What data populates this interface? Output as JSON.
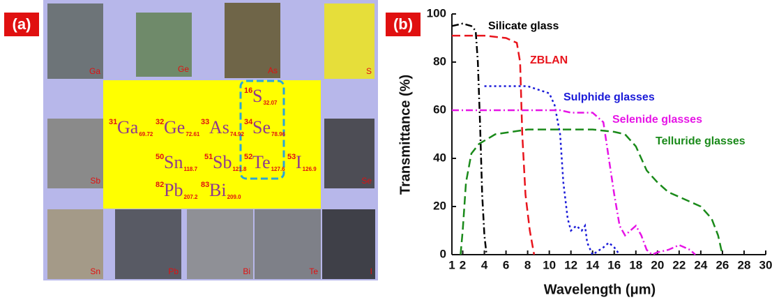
{
  "panel_a": {
    "label": "(a)",
    "elements": [
      {
        "number": "31",
        "symbol": "Ga",
        "mass": "69.72"
      },
      {
        "number": "32",
        "symbol": "Ge",
        "mass": "72.61"
      },
      {
        "number": "33",
        "symbol": "As",
        "mass": "74.92"
      },
      {
        "number": "34",
        "symbol": "Se",
        "mass": "78.96"
      },
      {
        "number": "16",
        "symbol": "S",
        "mass": "32.07"
      },
      {
        "number": "50",
        "symbol": "Sn",
        "mass": "118.7"
      },
      {
        "number": "51",
        "symbol": "Sb",
        "mass": "121.8"
      },
      {
        "number": "52",
        "symbol": "Te",
        "mass": "127.6"
      },
      {
        "number": "53",
        "symbol": "I",
        "mass": "126.9"
      },
      {
        "number": "82",
        "symbol": "Pb",
        "mass": "207.2"
      },
      {
        "number": "83",
        "symbol": "Bi",
        "mass": "209.0"
      }
    ],
    "photo_labels": [
      "Ga",
      "Ge",
      "As",
      "S",
      "Sb",
      "Se",
      "Sn",
      "Pb",
      "Bi",
      "Te",
      "I"
    ]
  },
  "chart_data": {
    "type": "line",
    "panel_label": "(b)",
    "x_label": "Wavelength (μm)",
    "y_label": "Transmittance (%)",
    "xlim": [
      1,
      30
    ],
    "xticks": [
      1,
      2,
      4,
      6,
      8,
      10,
      12,
      14,
      16,
      18,
      20,
      22,
      24,
      26,
      28,
      30
    ],
    "ylim": [
      0,
      100
    ],
    "yticks": [
      0,
      20,
      40,
      60,
      80,
      100
    ],
    "series": [
      {
        "name": "Silicate glass",
        "color": "#000000",
        "style": "dash-dot",
        "x": [
          1,
          2,
          2.8,
          3.2,
          3.4,
          3.6,
          3.8,
          4,
          4.2
        ],
        "values": [
          95,
          96,
          95,
          93,
          80,
          55,
          25,
          8,
          0
        ]
      },
      {
        "name": "ZBLAN",
        "color": "#e8141c",
        "style": "dashed",
        "x": [
          1,
          4,
          6,
          7,
          7.3,
          7.5,
          7.8,
          8.2,
          8.6
        ],
        "values": [
          91,
          91,
          90,
          88,
          80,
          50,
          25,
          10,
          0
        ]
      },
      {
        "name": "Sulphide glasses",
        "color": "#1a1ad8",
        "style": "dotted",
        "x": [
          4,
          8,
          10,
          10.5,
          11,
          11.3,
          11.7,
          12,
          12.5,
          13,
          13.3,
          13.5,
          14,
          15,
          15.5,
          16,
          16.5
        ],
        "values": [
          70,
          70,
          67,
          62,
          50,
          30,
          15,
          10,
          12,
          10,
          12,
          5,
          0,
          3,
          5,
          3,
          0
        ]
      },
      {
        "name": "Selenide glasses",
        "color": "#e614e6",
        "style": "dash-dot",
        "x": [
          1,
          4,
          8,
          11,
          12,
          14,
          15,
          15.5,
          16,
          16.5,
          17,
          17.5,
          18,
          18.5,
          19,
          19.5,
          20,
          21,
          22,
          23,
          23.5
        ],
        "values": [
          60,
          60,
          60,
          60,
          59,
          59,
          55,
          40,
          25,
          12,
          8,
          10,
          12,
          8,
          2,
          0,
          1,
          2,
          4,
          2,
          0
        ]
      },
      {
        "name": "Telluride glasses",
        "color": "#1a8a1a",
        "style": "dashed",
        "x": [
          1.8,
          2,
          2.3,
          2.8,
          3.5,
          5,
          8,
          11,
          14,
          16,
          17,
          18,
          19,
          20,
          21,
          22,
          23,
          24,
          25,
          25.6,
          26
        ],
        "values": [
          0,
          10,
          30,
          42,
          46,
          50,
          52,
          52,
          52,
          51,
          50,
          45,
          35,
          30,
          26,
          24,
          22,
          20,
          15,
          8,
          0
        ]
      }
    ]
  }
}
